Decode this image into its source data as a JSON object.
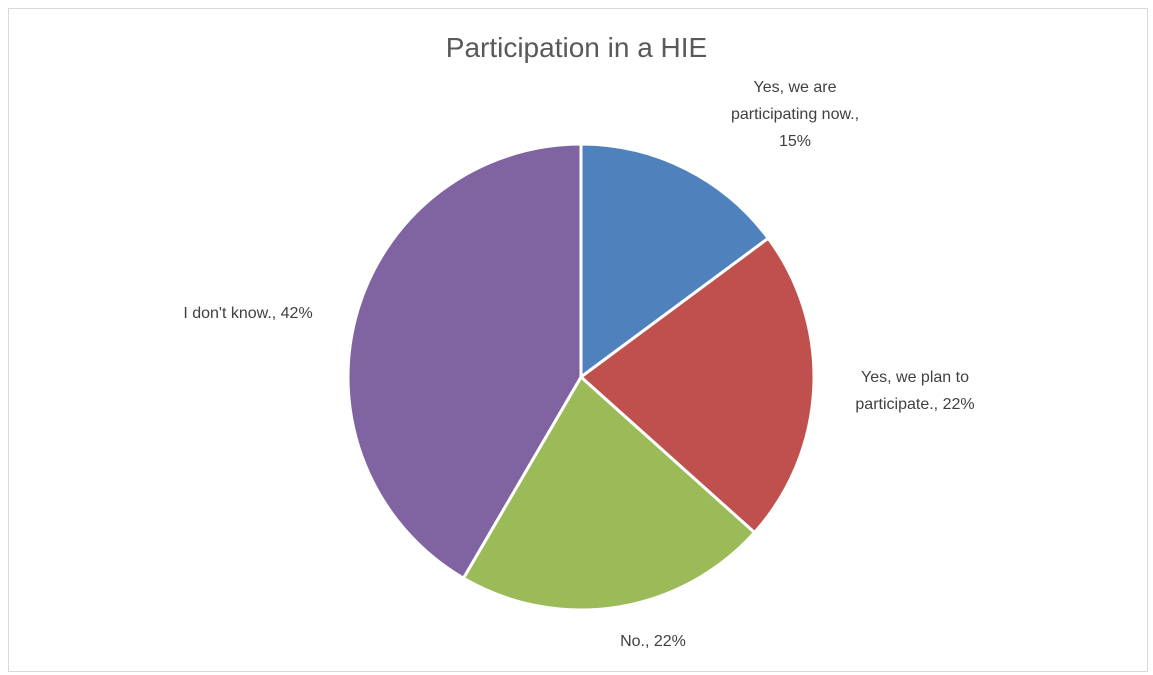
{
  "chart_data": {
    "type": "pie",
    "title": "Participation in a HIE",
    "categories": [
      "Yes, we are participating now.",
      "Yes, we plan to participate.",
      "No.",
      "I don't know."
    ],
    "values": [
      15,
      22,
      22,
      42
    ],
    "value_format": "percent",
    "colors": [
      "#4f81bd",
      "#c0504d",
      "#9bbb59",
      "#8064a2"
    ],
    "data_labels": [
      [
        "Yes, we are",
        "participating now.,",
        "15%"
      ],
      [
        "Yes, we plan to",
        "participate., 22%"
      ],
      [
        "No., 22%"
      ],
      [
        "I don't know., 42%"
      ]
    ],
    "legend": "none"
  }
}
